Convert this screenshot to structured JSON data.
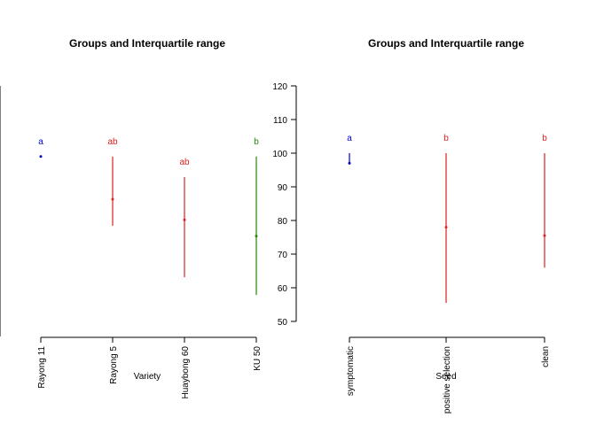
{
  "chart_data": [
    {
      "type": "scatter",
      "title": "Groups and Interquartile range",
      "xlabel": "Variety",
      "ylabel": "",
      "categories": [
        "Rayong 11",
        "Rayong 5",
        "Huaybong 60",
        "KU 50"
      ],
      "ylim": [
        45,
        125
      ],
      "y_ticks_shown": false,
      "series": [
        {
          "center": [
            101,
            86.5,
            79.5,
            74
          ],
          "q1": [
            101,
            77.5,
            60,
            54
          ],
          "q3": [
            101,
            101,
            94,
            101
          ],
          "groups": [
            "a",
            "ab",
            "ab",
            "b"
          ],
          "colors": [
            "#0000cc",
            "#dd2222",
            "#dd2222",
            "#228800"
          ]
        }
      ]
    },
    {
      "type": "scatter",
      "title": "Groups and Interquartile range",
      "xlabel": "Seed",
      "ylabel": "",
      "categories": [
        "symptomatic",
        "positive selection",
        "clean"
      ],
      "ylim": [
        50,
        120
      ],
      "y_ticks": [
        50,
        60,
        70,
        80,
        90,
        100,
        110,
        120
      ],
      "series": [
        {
          "center": [
            97,
            78,
            75.5
          ],
          "q1": [
            97,
            55.5,
            66
          ],
          "q3": [
            100,
            100,
            100
          ],
          "groups": [
            "a",
            "b",
            "b"
          ],
          "colors": [
            "#0000cc",
            "#dd2222",
            "#dd2222"
          ]
        }
      ]
    }
  ]
}
